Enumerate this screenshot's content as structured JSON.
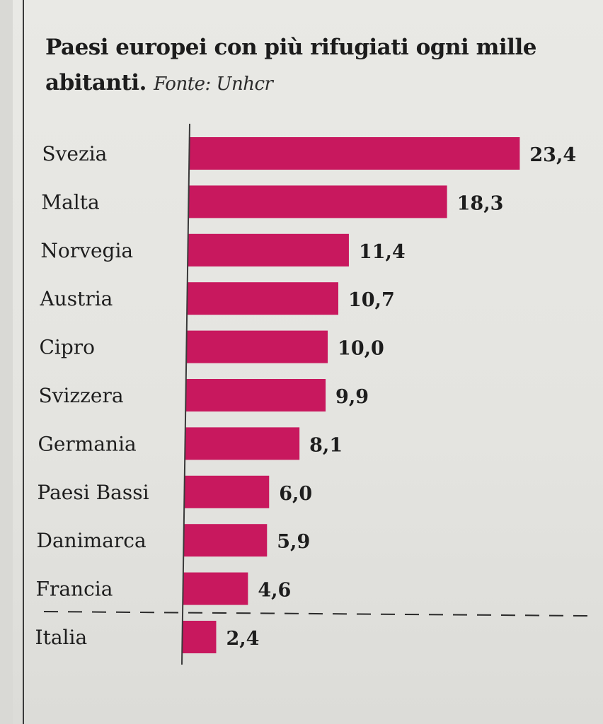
{
  "title": "Paesi europei con più rifugiati ogni mille abitanti.",
  "source": "Fonte: Unhcr",
  "colors": {
    "bar": "#c8185e",
    "text": "#1d1d1d",
    "axis": "#3a3a3a"
  },
  "chart_data": {
    "type": "bar",
    "orientation": "horizontal",
    "title": "Paesi europei con più rifugiati ogni mille abitanti.",
    "source": "Fonte: Unhcr",
    "categories": [
      "Svezia",
      "Malta",
      "Norvegia",
      "Austria",
      "Cipro",
      "Svizzera",
      "Germania",
      "Paesi Bassi",
      "Danimarca",
      "Francia",
      "Italia"
    ],
    "values": [
      23.4,
      18.3,
      11.4,
      10.7,
      10.0,
      9.9,
      8.1,
      6.0,
      5.9,
      4.6,
      2.4
    ],
    "value_labels": [
      "23,4",
      "18,3",
      "11,4",
      "10,7",
      "10,0",
      "9,9",
      "8,1",
      "6,0",
      "5,9",
      "4,6",
      "2,4"
    ],
    "separator_before": "Italia",
    "grid": false,
    "legend": "none"
  }
}
